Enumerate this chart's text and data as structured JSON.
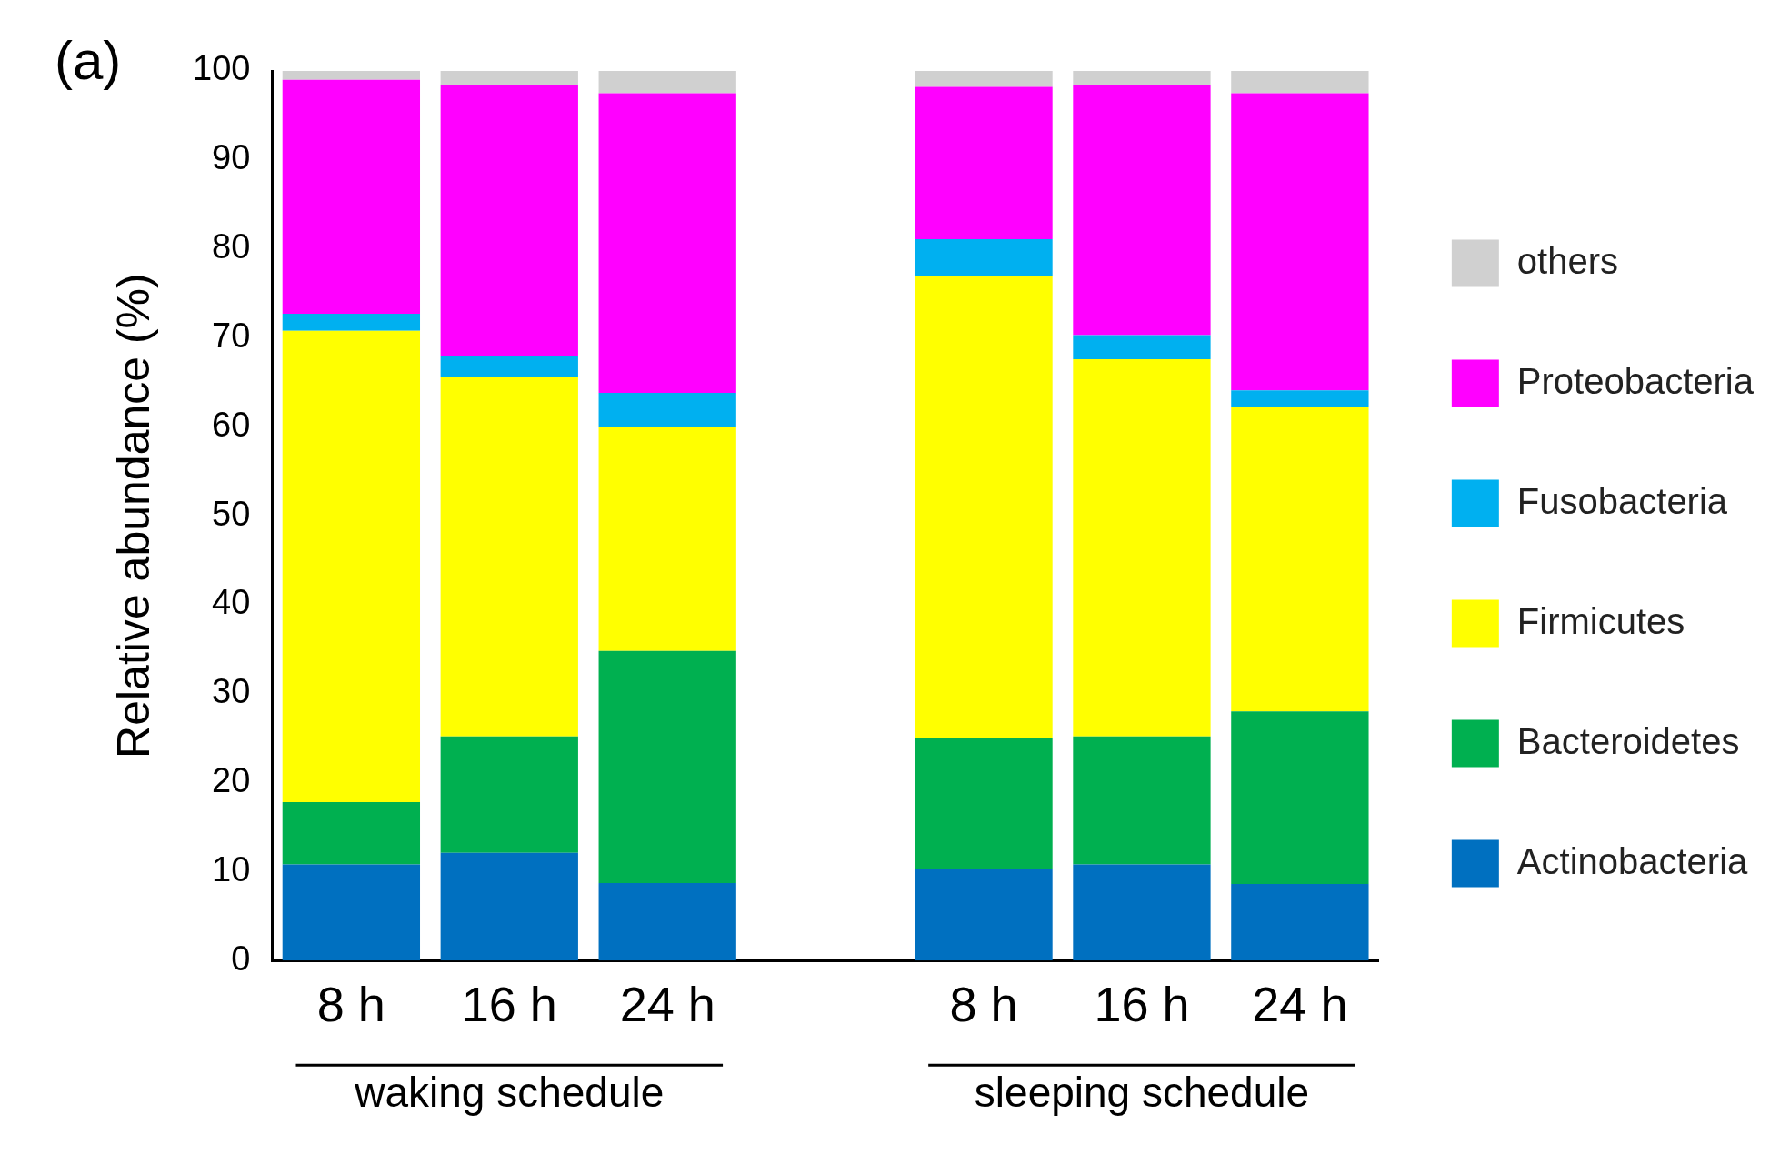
{
  "chart_data": {
    "type": "bar",
    "title": "(a)",
    "ylabel": "Relative abundance (%)",
    "categories": [
      "8 h",
      "16 h",
      "24 h",
      null,
      "8 h",
      "16 h",
      "24 h"
    ],
    "stacked": true,
    "legend": "right",
    "grid": false,
    "ylim": [
      0,
      100
    ],
    "yticks": [
      0,
      10,
      20,
      30,
      40,
      50,
      60,
      70,
      80,
      90,
      100
    ],
    "annotations": [
      "waking schedule",
      "sleeping schedule"
    ],
    "series": [
      {
        "name": "Actinobacteria",
        "color": "#0070c0",
        "values": [
          10.8,
          12.1,
          8.7,
          null,
          10.3,
          10.8,
          8.6
        ]
      },
      {
        "name": "Bacteroidetes",
        "color": "#00b050",
        "values": [
          7.0,
          13.1,
          26.1,
          null,
          14.7,
          14.4,
          19.4
        ]
      },
      {
        "name": "Firmicutes",
        "color": "#ffff00",
        "values": [
          53.0,
          40.4,
          25.2,
          null,
          52.0,
          42.4,
          34.2
        ]
      },
      {
        "name": "Fusobacteria",
        "color": "#00b0f0",
        "values": [
          1.9,
          2.4,
          3.8,
          null,
          4.1,
          2.7,
          1.9
        ]
      },
      {
        "name": "Proteobacteria",
        "color": "#ff00ff",
        "values": [
          26.3,
          30.4,
          33.7,
          null,
          17.1,
          28.1,
          33.4
        ]
      },
      {
        "name": "others",
        "color": "#d0d0d0",
        "values": [
          1.0,
          1.6,
          2.5,
          null,
          1.8,
          1.6,
          2.5
        ]
      }
    ]
  }
}
